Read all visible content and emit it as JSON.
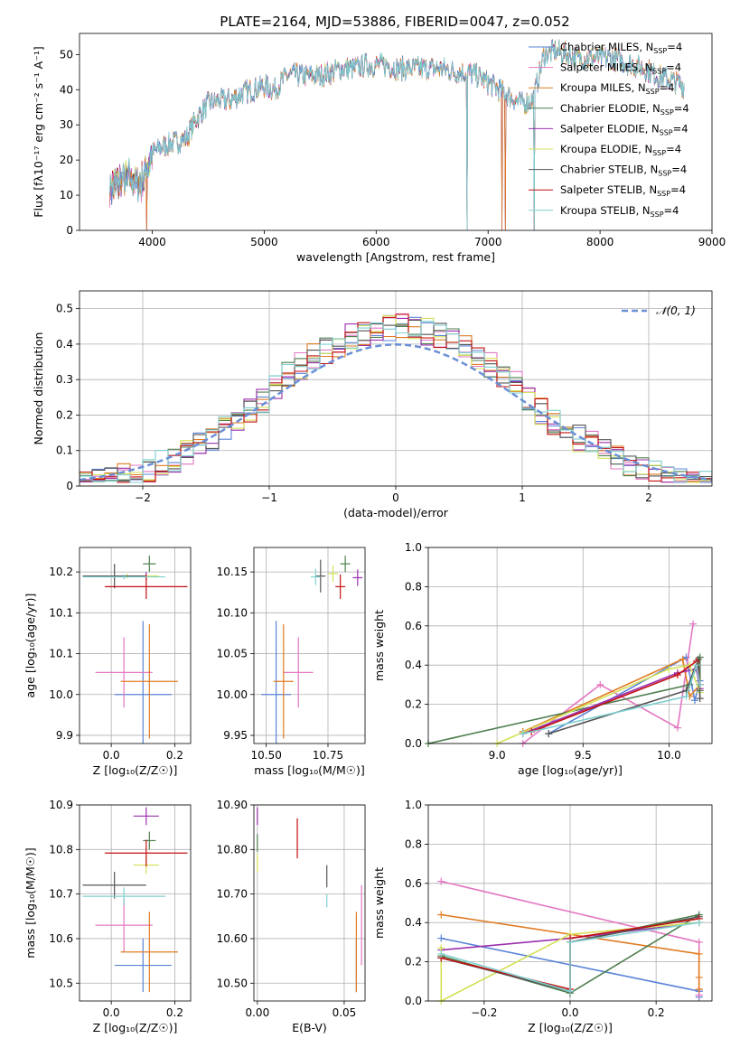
{
  "figure_title": "PLATE=2164, MJD=53886, FIBERID=0047, z=0.052",
  "colors": {
    "Chabrier MILES": "#5b84d8",
    "Salpeter MILES": "#e377c2",
    "Kroupa MILES": "#e07b22",
    "Chabrier ELODIE": "#4f7f4f",
    "Salpeter ELODIE": "#9b2fae",
    "Kroupa ELODIE": "#d4e157",
    "Chabrier STELIB": "#555555",
    "Salpeter STELIB": "#c41010",
    "Kroupa STELIB": "#80cfd0"
  },
  "chart_data": [
    {
      "id": "spectrum",
      "type": "line",
      "title": "PLATE=2164, MJD=53886, FIBERID=0047, z=0.052",
      "xlabel": "wavelength [Angstrom, rest frame]",
      "ylabel": "Flux [fλ10⁻¹⁷ erg cm⁻² s⁻¹ A⁻¹]",
      "xlim": [
        3350,
        9000
      ],
      "ylim": [
        0,
        56
      ],
      "xticks": [
        4000,
        5000,
        6000,
        7000,
        8000,
        9000
      ],
      "yticks": [
        0,
        10,
        20,
        30,
        40,
        50
      ],
      "grid": false,
      "legend_position": "right",
      "legend": [
        "Chabrier MILES, N_SSP=4",
        "Salpeter MILES, N_SSP=4",
        "Kroupa MILES, N_SSP=4",
        "Chabrier ELODIE, N_SSP=4",
        "Salpeter ELODIE, N_SSP=4",
        "Kroupa ELODIE, N_SSP=4",
        "Chabrier STELIB, N_SSP=4",
        "Salpeter STELIB, N_SSP=4",
        "Kroupa STELIB, N_SSP=4"
      ],
      "series_envelope": {
        "x": [
          3620,
          3700,
          3800,
          3900,
          4000,
          4100,
          4200,
          4300,
          4400,
          4500,
          4600,
          4700,
          4800,
          4900,
          5000,
          5100,
          5200,
          5300,
          5400,
          5500,
          5600,
          5700,
          5800,
          5900,
          6000,
          6100,
          6200,
          6300,
          6400,
          6500,
          6600,
          6700,
          6800,
          6900,
          7000,
          7100,
          7200,
          7300,
          7400,
          7500,
          7600,
          7700,
          7800,
          7900,
          8000,
          8100,
          8200,
          8300,
          8400,
          8500,
          8600,
          8700,
          8800
        ],
        "y": [
          12,
          14,
          15,
          13,
          22,
          24,
          25,
          26,
          32,
          36,
          37,
          37,
          39,
          40,
          41,
          40,
          44,
          44,
          44,
          44,
          45,
          46,
          46,
          47,
          47,
          47,
          46,
          46,
          46,
          46,
          46,
          45,
          45,
          44,
          42,
          40,
          38,
          36,
          37,
          50,
          51,
          50,
          49,
          49,
          49,
          49,
          48,
          47,
          46,
          44,
          43,
          42,
          40
        ]
      },
      "mask_drops": [
        3950,
        6810,
        7125,
        7155,
        7410
      ],
      "visible_x_range": [
        3620,
        8750
      ]
    },
    {
      "id": "residuals",
      "type": "histogram",
      "xlabel": "(data-model)/error",
      "ylabel": "Normed distribution",
      "xlim": [
        -2.5,
        2.5
      ],
      "ylim": [
        0,
        0.55
      ],
      "xticks": [
        -2,
        -1,
        0,
        1,
        2
      ],
      "yticks": [
        0.0,
        0.1,
        0.2,
        0.3,
        0.4,
        0.5
      ],
      "grid": true,
      "legend_position": "top-right",
      "legend": [
        "𝒩(0, 1)"
      ],
      "reference_curve": "normal(0,1)",
      "bin_width": 0.1,
      "approx_peak": 0.52
    },
    {
      "id": "age_vs_Z",
      "type": "scatter",
      "xlabel": "Z [log₁₀(Z/Z☉)]",
      "ylabel": "age  [log₁₀(age/yr)]",
      "xlim": [
        -0.1,
        0.25
      ],
      "ylim": [
        9.94,
        10.18
      ],
      "xticks": [
        0.0,
        0.2
      ],
      "yticks": [
        9.95,
        10.0,
        10.05,
        10.1,
        10.15
      ],
      "grid": true,
      "points": [
        {
          "series": "Chabrier MILES",
          "x": 0.1,
          "y": 10.0,
          "xerr": 0.09,
          "yerr": 0.09
        },
        {
          "series": "Salpeter MILES",
          "x": 0.04,
          "y": 10.027,
          "xerr": 0.09,
          "yerr": 0.043
        },
        {
          "series": "Kroupa MILES",
          "x": 0.12,
          "y": 10.016,
          "xerr": 0.09,
          "yerr": 0.07
        },
        {
          "series": "Chabrier ELODIE",
          "x": 0.12,
          "y": 10.16,
          "xerr": 0.02,
          "yerr": 0.01
        },
        {
          "series": "Salpeter ELODIE",
          "x": 0.11,
          "y": 10.145,
          "xerr": 0.01,
          "yerr": 0.005
        },
        {
          "series": "Kroupa ELODIE",
          "x": 0.05,
          "y": 10.145,
          "xerr": 0.1,
          "yerr": 0.003
        },
        {
          "series": "Chabrier STELIB",
          "x": 0.01,
          "y": 10.145,
          "xerr": 0.1,
          "yerr": 0.015
        },
        {
          "series": "Salpeter STELIB",
          "x": 0.11,
          "y": 10.132,
          "xerr": 0.13,
          "yerr": 0.015
        },
        {
          "series": "Kroupa STELIB",
          "x": 0.04,
          "y": 10.144,
          "xerr": 0.13,
          "yerr": 0.003
        }
      ]
    },
    {
      "id": "age_vs_mass",
      "type": "scatter",
      "xlabel": "mass [log₁₀(M/M☉)]",
      "ylabel": "",
      "xlim": [
        10.45,
        10.9
      ],
      "ylim": [
        9.94,
        10.18
      ],
      "xticks": [
        10.5,
        10.75
      ],
      "yticks": [
        9.95,
        10.0,
        10.05,
        10.1,
        10.15
      ],
      "grid": true,
      "points": [
        {
          "series": "Chabrier MILES",
          "x": 10.54,
          "y": 10.0,
          "xerr": 0.06,
          "yerr": 0.09
        },
        {
          "series": "Salpeter MILES",
          "x": 10.63,
          "y": 10.027,
          "xerr": 0.06,
          "yerr": 0.043
        },
        {
          "series": "Kroupa MILES",
          "x": 10.57,
          "y": 10.016,
          "xerr": 0.04,
          "yerr": 0.07
        },
        {
          "series": "Chabrier ELODIE",
          "x": 10.82,
          "y": 10.16,
          "xerr": 0.02,
          "yerr": 0.01
        },
        {
          "series": "Salpeter ELODIE",
          "x": 10.87,
          "y": 10.143,
          "xerr": 0.02,
          "yerr": 0.01
        },
        {
          "series": "Kroupa ELODIE",
          "x": 10.77,
          "y": 10.148,
          "xerr": 0.02,
          "yerr": 0.01
        },
        {
          "series": "Chabrier STELIB",
          "x": 10.72,
          "y": 10.145,
          "xerr": 0.02,
          "yerr": 0.02
        },
        {
          "series": "Salpeter STELIB",
          "x": 10.8,
          "y": 10.132,
          "xerr": 0.02,
          "yerr": 0.015
        },
        {
          "series": "Kroupa STELIB",
          "x": 10.7,
          "y": 10.144,
          "xerr": 0.02,
          "yerr": 0.01
        }
      ]
    },
    {
      "id": "weight_vs_age",
      "type": "line",
      "xlabel": "age  [log₁₀(age/yr)]",
      "ylabel": "mass weight",
      "xlim": [
        8.6,
        10.25
      ],
      "ylim": [
        0,
        1
      ],
      "xticks": [
        9.0,
        9.5,
        10.0
      ],
      "yticks": [
        0.0,
        0.2,
        0.4,
        0.6,
        0.8,
        1.0
      ],
      "grid": true,
      "series": [
        {
          "series": "Chabrier MILES",
          "x": [
            9.3,
            10.1,
            10.15,
            10.18
          ],
          "y": [
            0.05,
            0.44,
            0.22,
            0.32
          ]
        },
        {
          "series": "Salpeter MILES",
          "x": [
            9.15,
            9.6,
            10.05,
            10.14
          ],
          "y": [
            0.0,
            0.3,
            0.08,
            0.61
          ]
        },
        {
          "series": "Kroupa MILES",
          "x": [
            9.15,
            10.08,
            10.12,
            10.18
          ],
          "y": [
            0.06,
            0.43,
            0.24,
            0.3
          ]
        },
        {
          "series": "Chabrier ELODIE",
          "x": [
            8.6,
            10.12,
            10.18,
            10.18
          ],
          "y": [
            0.0,
            0.3,
            0.44,
            0.27
          ]
        },
        {
          "series": "Salpeter ELODIE",
          "x": [
            9.15,
            10.05,
            10.16,
            10.18
          ],
          "y": [
            0.05,
            0.36,
            0.38,
            0.28
          ]
        },
        {
          "series": "Kroupa ELODIE",
          "x": [
            9.0,
            10.0,
            10.12,
            10.18
          ],
          "y": [
            0.0,
            0.38,
            0.4,
            0.26
          ]
        },
        {
          "series": "Chabrier STELIB",
          "x": [
            9.3,
            10.1,
            10.17,
            10.18
          ],
          "y": [
            0.05,
            0.27,
            0.43,
            0.23
          ]
        },
        {
          "series": "Salpeter STELIB",
          "x": [
            9.2,
            10.05,
            10.16,
            10.18
          ],
          "y": [
            0.06,
            0.35,
            0.42,
            0.3
          ]
        },
        {
          "series": "Kroupa STELIB",
          "x": [
            9.15,
            10.1,
            10.16,
            10.18
          ],
          "y": [
            0.05,
            0.24,
            0.4,
            0.3
          ]
        }
      ]
    },
    {
      "id": "mass_vs_Z",
      "type": "scatter",
      "xlabel": "Z [log₁₀(Z/Z☉)]",
      "ylabel": "mass [log₁₀(M/M☉)]",
      "xlim": [
        -0.1,
        0.25
      ],
      "ylim": [
        10.46,
        10.9
      ],
      "xticks": [
        0.0,
        0.2
      ],
      "yticks": [
        10.5,
        10.6,
        10.7,
        10.8,
        10.9
      ],
      "grid": true,
      "points": [
        {
          "series": "Chabrier MILES",
          "x": 0.1,
          "y": 10.54,
          "xerr": 0.09,
          "yerr": 0.06
        },
        {
          "series": "Salpeter MILES",
          "x": 0.04,
          "y": 10.63,
          "xerr": 0.09,
          "yerr": 0.06
        },
        {
          "series": "Kroupa MILES",
          "x": 0.12,
          "y": 10.57,
          "xerr": 0.09,
          "yerr": 0.09
        },
        {
          "series": "Chabrier ELODIE",
          "x": 0.12,
          "y": 10.82,
          "xerr": 0.02,
          "yerr": 0.02
        },
        {
          "series": "Salpeter ELODIE",
          "x": 0.11,
          "y": 10.875,
          "xerr": 0.04,
          "yerr": 0.02
        },
        {
          "series": "Kroupa ELODIE",
          "x": 0.11,
          "y": 10.765,
          "xerr": 0.04,
          "yerr": 0.02
        },
        {
          "series": "Chabrier STELIB",
          "x": 0.01,
          "y": 10.72,
          "xerr": 0.1,
          "yerr": 0.03
        },
        {
          "series": "Salpeter STELIB",
          "x": 0.11,
          "y": 10.792,
          "xerr": 0.13,
          "yerr": 0.03
        },
        {
          "series": "Kroupa STELIB",
          "x": 0.04,
          "y": 10.695,
          "xerr": 0.13,
          "yerr": 0.02
        }
      ]
    },
    {
      "id": "mass_vs_ebv",
      "type": "scatter",
      "xlabel": "E(B-V)",
      "ylabel": "",
      "xlim": [
        -0.002,
        0.062
      ],
      "ylim": [
        10.46,
        10.9
      ],
      "xticks": [
        0.0,
        0.05
      ],
      "yticks": [
        10.5,
        10.6,
        10.7,
        10.8,
        10.9
      ],
      "grid": true,
      "points": [
        {
          "series": "Chabrier MILES",
          "x": 0.057,
          "y": 10.54,
          "xerr": 0.0,
          "yerr": 0.06
        },
        {
          "series": "Salpeter MILES",
          "x": 0.06,
          "y": 10.63,
          "xerr": 0.0,
          "yerr": 0.09
        },
        {
          "series": "Kroupa MILES",
          "x": 0.057,
          "y": 10.57,
          "xerr": 0.0,
          "yerr": 0.09
        },
        {
          "series": "Chabrier ELODIE",
          "x": 0.0,
          "y": 10.815,
          "xerr": 0.0,
          "yerr": 0.02
        },
        {
          "series": "Salpeter ELODIE",
          "x": 0.0,
          "y": 10.875,
          "xerr": 0.0,
          "yerr": 0.02
        },
        {
          "series": "Kroupa ELODIE",
          "x": 0.0,
          "y": 10.77,
          "xerr": 0.0,
          "yerr": 0.02
        },
        {
          "series": "Chabrier STELIB",
          "x": 0.04,
          "y": 10.74,
          "xerr": 0.0,
          "yerr": 0.025
        },
        {
          "series": "Salpeter STELIB",
          "x": 0.023,
          "y": 10.825,
          "xerr": 0.0,
          "yerr": 0.045
        },
        {
          "series": "Kroupa STELIB",
          "x": 0.04,
          "y": 10.685,
          "xerr": 0.0,
          "yerr": 0.015
        }
      ]
    },
    {
      "id": "weight_vs_Z",
      "type": "line",
      "xlabel": "Z [log₁₀(Z/Z☉)]",
      "ylabel": "mass weight",
      "xlim": [
        -0.33,
        0.33
      ],
      "ylim": [
        0,
        1
      ],
      "xticks": [
        -0.2,
        0.0,
        0.2
      ],
      "yticks": [
        0.0,
        0.2,
        0.4,
        0.6,
        0.8,
        1.0
      ],
      "grid": true,
      "series": [
        {
          "series": "Chabrier MILES",
          "x": [
            -0.3,
            0.3,
            0.3,
            0.3
          ],
          "y": [
            0.32,
            0.05,
            0.05,
            0.02
          ]
        },
        {
          "series": "Salpeter MILES",
          "x": [
            -0.3,
            0.3,
            0.3,
            0.3
          ],
          "y": [
            0.61,
            0.3,
            0.06,
            0.03
          ]
        },
        {
          "series": "Kroupa MILES",
          "x": [
            -0.3,
            0.3,
            0.3,
            0.3
          ],
          "y": [
            0.44,
            0.24,
            0.12,
            0.06
          ]
        },
        {
          "series": "Chabrier ELODIE",
          "x": [
            -0.3,
            0.0,
            0.3,
            0.0
          ],
          "y": [
            0.23,
            0.04,
            0.44,
            0.3
          ]
        },
        {
          "series": "Salpeter ELODIE",
          "x": [
            -0.3,
            0.0,
            0.0,
            0.3
          ],
          "y": [
            0.26,
            0.32,
            0.32,
            0.4
          ]
        },
        {
          "series": "Kroupa ELODIE",
          "x": [
            -0.3,
            -0.3,
            0.0,
            0.3
          ],
          "y": [
            0.27,
            0.0,
            0.34,
            0.4
          ]
        },
        {
          "series": "Chabrier STELIB",
          "x": [
            -0.3,
            0.0,
            0.0,
            0.3
          ],
          "y": [
            0.22,
            0.05,
            0.3,
            0.43
          ]
        },
        {
          "series": "Salpeter STELIB",
          "x": [
            -0.3,
            0.0,
            0.0,
            0.3
          ],
          "y": [
            0.22,
            0.06,
            0.32,
            0.42
          ]
        },
        {
          "series": "Kroupa STELIB",
          "x": [
            -0.3,
            0.0,
            0.0,
            0.3
          ],
          "y": [
            0.24,
            0.05,
            0.3,
            0.4
          ]
        }
      ]
    }
  ]
}
